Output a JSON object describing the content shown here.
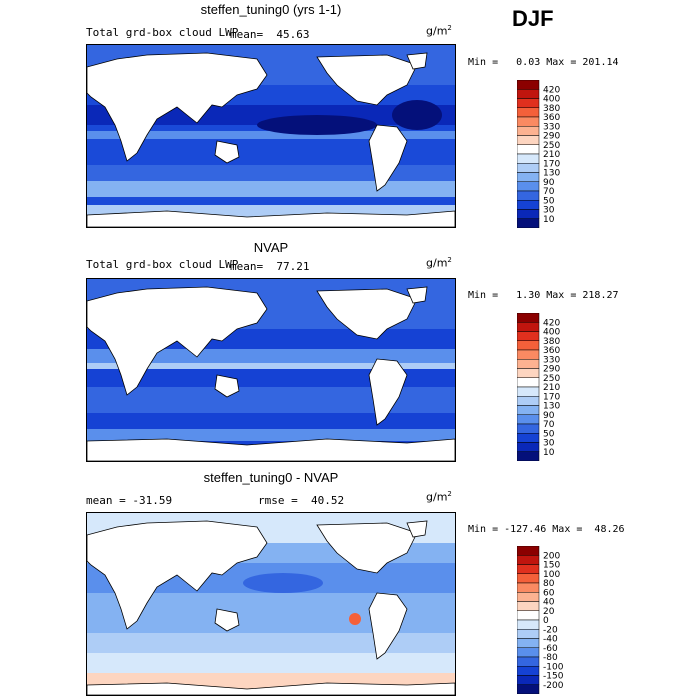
{
  "season": "DJF",
  "units_main": "g/m",
  "units_sup": "2",
  "panels": [
    {
      "title": "steffen_tuning0 (yrs 1-1)",
      "subtitle_left": "Total grd-box cloud LWP",
      "stat_text": "mean=  45.63",
      "minmax": "Min =   0.03 Max = 201.14",
      "colorbar": {
        "labels": [
          "420",
          "400",
          "380",
          "360",
          "330",
          "290",
          "250",
          "210",
          "170",
          "130",
          "90",
          "70",
          "50",
          "30",
          "10"
        ],
        "colors": [
          "#8b0000",
          "#c0150e",
          "#e0301e",
          "#f4603a",
          "#fa8a62",
          "#fcb291",
          "#fdd5c0",
          "#ffffff",
          "#d6e8fb",
          "#aecdf6",
          "#84b2f2",
          "#5a8fec",
          "#3466e0",
          "#1542d4",
          "#0a28b8",
          "#04107a"
        ]
      }
    },
    {
      "title": "NVAP",
      "subtitle_left": "Total grd-box cloud LWP",
      "stat_text": "mean=  77.21",
      "minmax": "Min =   1.30 Max = 218.27",
      "colorbar": {
        "labels": [
          "420",
          "400",
          "380",
          "360",
          "330",
          "290",
          "250",
          "210",
          "170",
          "130",
          "90",
          "70",
          "50",
          "30",
          "10"
        ],
        "colors": [
          "#8b0000",
          "#c0150e",
          "#e0301e",
          "#f4603a",
          "#fa8a62",
          "#fcb291",
          "#fdd5c0",
          "#ffffff",
          "#d6e8fb",
          "#aecdf6",
          "#84b2f2",
          "#5a8fec",
          "#3466e0",
          "#1542d4",
          "#0a28b8",
          "#04107a"
        ]
      }
    },
    {
      "title": "steffen_tuning0 - NVAP",
      "subtitle_left": "mean = -31.59",
      "stat_text": "rmse =  40.52",
      "minmax": "Min = -127.46 Max =  48.26",
      "colorbar": {
        "labels": [
          "200",
          "150",
          "100",
          "80",
          "60",
          "40",
          "20",
          "0",
          "-20",
          "-40",
          "-60",
          "-80",
          "-100",
          "-150",
          "-200"
        ],
        "colors": [
          "#8b0000",
          "#c0150e",
          "#e0301e",
          "#f4603a",
          "#fa8a62",
          "#fcb291",
          "#fdd5c0",
          "#ffffff",
          "#d6e8fb",
          "#aecdf6",
          "#84b2f2",
          "#5a8fec",
          "#3466e0",
          "#1542d4",
          "#0a28b8",
          "#04107a"
        ]
      }
    }
  ]
}
